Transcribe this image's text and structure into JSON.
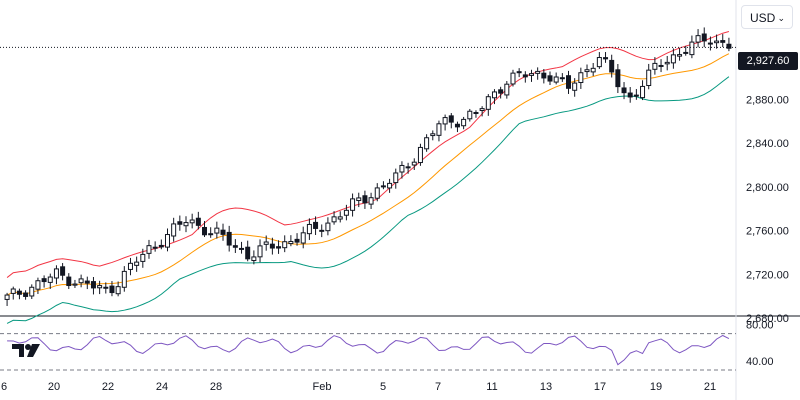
{
  "toolbar": {
    "currency_label": "USD",
    "chevron_icon": "chevron-down-icon"
  },
  "last_price": {
    "label": "2,927.60",
    "value": 2927.6
  },
  "logo": {
    "text": "TV",
    "icon": "tradingview-logo-icon"
  },
  "colors": {
    "upper_band": "#f23645",
    "middle_band": "#ff9800",
    "lower_band": "#089981",
    "rsi_line": "#7e57c2",
    "candle": "#131722",
    "badge": "#131722"
  },
  "chart_data": [
    {
      "type": "candlestick",
      "ylim": [
        2680,
        2960
      ],
      "y_ticks": [
        2680,
        2720,
        2760,
        2800,
        2840,
        2880,
        2920
      ],
      "y_tick_labels": [
        "2,680.00",
        "2,720.00",
        "2,760.00",
        "2,800.00",
        "2,840.00",
        "2,880.00",
        "2,920.00"
      ],
      "x_tick_labels": [
        "6",
        "20",
        "22",
        "24",
        "28",
        "Feb",
        "5",
        "7",
        "11",
        "13",
        "17",
        "19",
        "21"
      ],
      "overlays": [
        "upper_band",
        "middle_band",
        "lower_band"
      ],
      "last_price_line": 2927.6
    },
    {
      "type": "line",
      "indicator": "rsi",
      "ylim": [
        30,
        85
      ],
      "y_ticks": [
        40,
        80
      ],
      "y_tick_labels": [
        "40.00",
        "80.00"
      ],
      "levels": [
        70,
        30
      ]
    }
  ]
}
